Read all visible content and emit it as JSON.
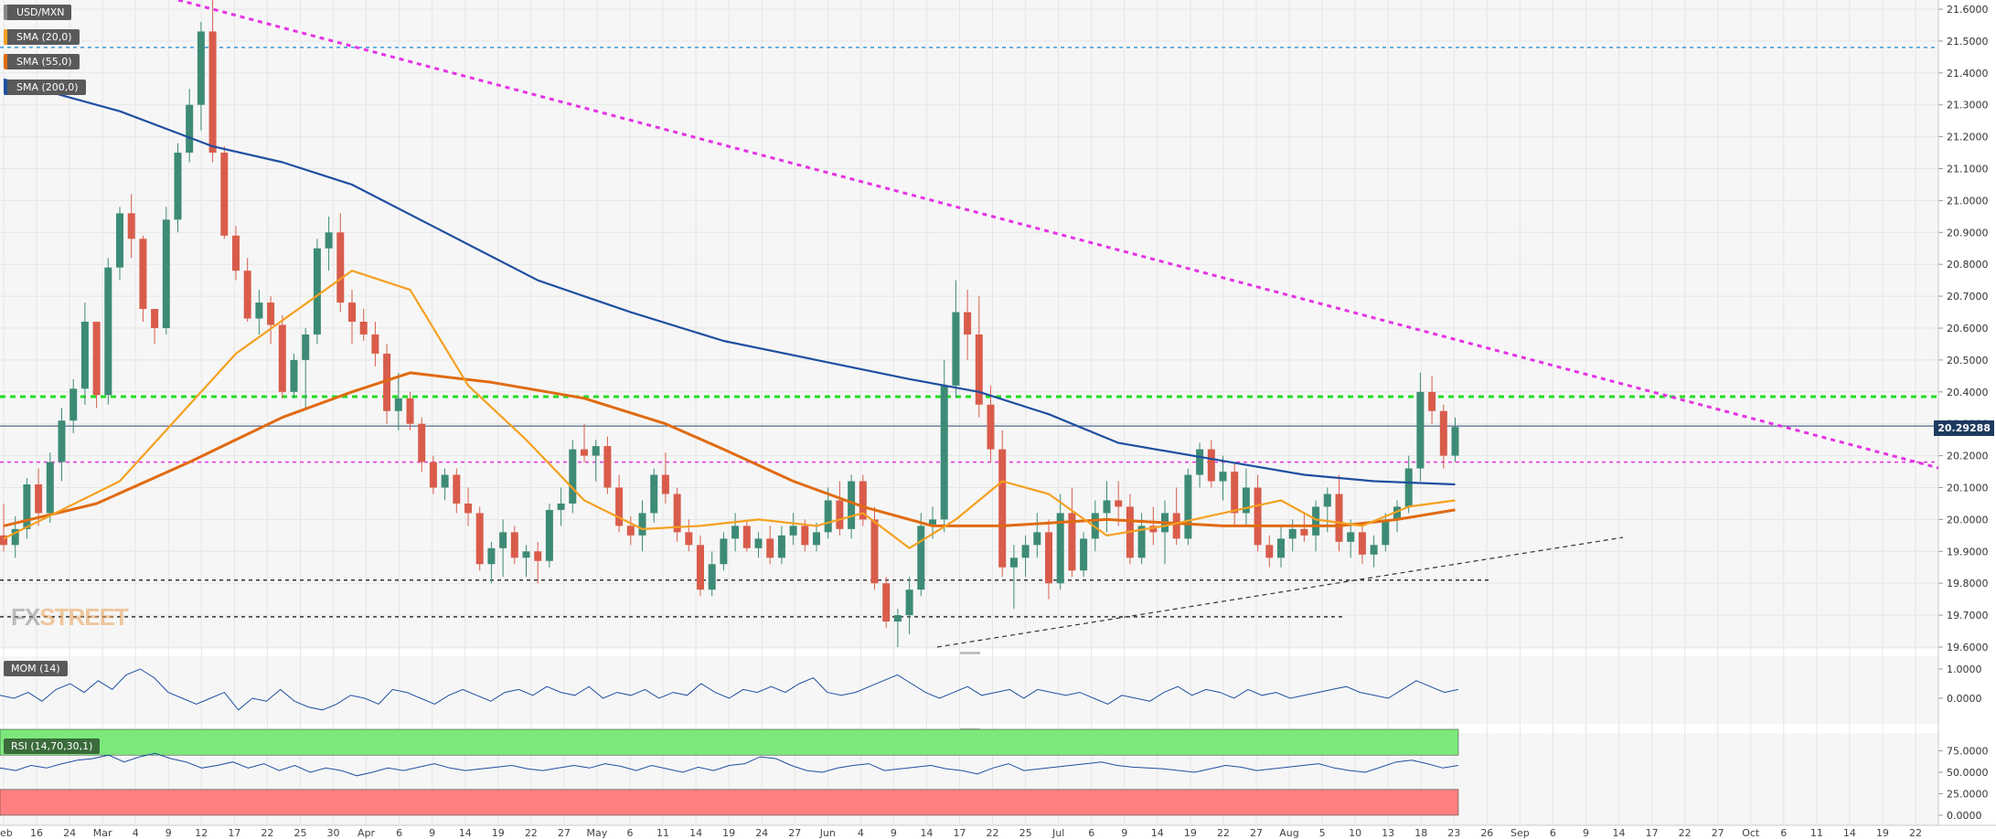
{
  "symbol": "USD/MXN",
  "indicators": {
    "sma20": "SMA (20,0)",
    "sma55": "SMA (55,0)",
    "sma200": "SMA (200,0)",
    "mom": "MOM (14)",
    "rsi": "RSI (14,70,30,1)"
  },
  "colors": {
    "up": "#3d8b76",
    "down": "#d95c4b",
    "sma20": "#f5a020",
    "sma55": "#e06b12",
    "sma200": "#1f4fa0",
    "trendline": "#e632e6",
    "level_green": "#22dd22",
    "rsi_overbought_zone": "#7ce87c",
    "rsi_oversold_zone": "#ff8080"
  },
  "logo": {
    "part1": "FX",
    "part2": "STREET"
  },
  "current_price_label": "20.29288",
  "chart_data": {
    "type": "candlestick",
    "y_axis": {
      "range": [
        19.6,
        21.6
      ],
      "ticks": [
        "21.6000",
        "21.5000",
        "21.4000",
        "21.3000",
        "21.2000",
        "21.1000",
        "21.0000",
        "20.9000",
        "20.8000",
        "20.7000",
        "20.6000",
        "20.5000",
        "20.4000",
        "20.3000",
        "20.2000",
        "20.1000",
        "20.0000",
        "19.9000",
        "19.8000",
        "19.7000",
        "19.6000"
      ]
    },
    "x_ticks": [
      "Feb",
      "16",
      "24",
      "Mar",
      "4",
      "9",
      "12",
      "17",
      "22",
      "25",
      "30",
      "Apr",
      "6",
      "9",
      "14",
      "19",
      "22",
      "27",
      "May",
      "6",
      "11",
      "14",
      "19",
      "24",
      "27",
      "Jun",
      "4",
      "9",
      "14",
      "17",
      "22",
      "25",
      "Jul",
      "6",
      "9",
      "14",
      "19",
      "22",
      "27",
      "Aug",
      "5",
      "10",
      "13",
      "18",
      "23",
      "26",
      "Sep",
      "6",
      "9",
      "14",
      "17",
      "22",
      "27",
      "Oct",
      "6",
      "11",
      "14",
      "19",
      "22"
    ],
    "candles": [
      [
        19.95,
        20.05,
        19.9,
        19.92
      ],
      [
        19.92,
        20.01,
        19.88,
        19.97
      ],
      [
        19.97,
        20.13,
        19.94,
        20.11
      ],
      [
        20.11,
        20.16,
        19.98,
        20.02
      ],
      [
        20.02,
        20.21,
        19.99,
        20.18
      ],
      [
        20.18,
        20.35,
        20.12,
        20.31
      ],
      [
        20.31,
        20.44,
        20.27,
        20.41
      ],
      [
        20.41,
        20.68,
        20.36,
        20.62
      ],
      [
        20.62,
        20.6,
        20.35,
        20.39
      ],
      [
        20.39,
        20.82,
        20.36,
        20.79
      ],
      [
        20.79,
        20.98,
        20.75,
        20.96
      ],
      [
        20.96,
        21.02,
        20.82,
        20.88
      ],
      [
        20.88,
        20.89,
        20.62,
        20.66
      ],
      [
        20.66,
        20.66,
        20.55,
        20.6
      ],
      [
        20.6,
        20.98,
        20.58,
        20.94
      ],
      [
        20.94,
        21.18,
        20.9,
        21.15
      ],
      [
        21.15,
        21.35,
        21.12,
        21.3
      ],
      [
        21.3,
        21.56,
        21.22,
        21.53
      ],
      [
        21.53,
        21.63,
        21.12,
        21.15
      ],
      [
        21.15,
        21.17,
        20.88,
        20.89
      ],
      [
        20.89,
        20.92,
        20.75,
        20.78
      ],
      [
        20.78,
        20.82,
        20.62,
        20.63
      ],
      [
        20.63,
        20.72,
        20.58,
        20.68
      ],
      [
        20.68,
        20.7,
        20.55,
        20.61
      ],
      [
        20.61,
        20.64,
        20.38,
        20.4
      ],
      [
        20.4,
        20.52,
        20.38,
        20.5
      ],
      [
        20.5,
        20.6,
        20.35,
        20.58
      ],
      [
        20.58,
        20.88,
        20.55,
        20.85
      ],
      [
        20.85,
        20.95,
        20.78,
        20.9
      ],
      [
        20.9,
        20.96,
        20.65,
        20.68
      ],
      [
        20.68,
        20.72,
        20.55,
        20.62
      ],
      [
        20.62,
        20.66,
        20.56,
        20.58
      ],
      [
        20.58,
        20.62,
        20.48,
        20.52
      ],
      [
        20.52,
        20.55,
        20.3,
        20.34
      ],
      [
        20.34,
        20.46,
        20.28,
        20.38
      ],
      [
        20.38,
        20.4,
        20.28,
        20.3
      ],
      [
        20.3,
        20.32,
        20.15,
        20.18
      ],
      [
        20.18,
        20.2,
        20.08,
        20.1
      ],
      [
        20.1,
        20.16,
        20.06,
        20.14
      ],
      [
        20.14,
        20.16,
        20.02,
        20.05
      ],
      [
        20.05,
        20.1,
        19.98,
        20.02
      ],
      [
        20.02,
        20.04,
        19.84,
        19.86
      ],
      [
        19.86,
        19.93,
        19.8,
        19.91
      ],
      [
        19.91,
        20.0,
        19.82,
        19.96
      ],
      [
        19.96,
        19.98,
        19.86,
        19.88
      ],
      [
        19.88,
        19.92,
        19.82,
        19.9
      ],
      [
        19.9,
        19.93,
        19.8,
        19.87
      ],
      [
        19.87,
        20.05,
        19.85,
        20.03
      ],
      [
        20.03,
        20.1,
        19.98,
        20.05
      ],
      [
        20.05,
        20.25,
        20.02,
        20.22
      ],
      [
        20.22,
        20.3,
        20.18,
        20.2
      ],
      [
        20.2,
        20.25,
        20.12,
        20.23
      ],
      [
        20.23,
        20.26,
        20.08,
        20.1
      ],
      [
        20.1,
        20.14,
        19.96,
        19.98
      ],
      [
        19.98,
        20.01,
        19.92,
        19.95
      ],
      [
        19.95,
        20.06,
        19.9,
        20.02
      ],
      [
        20.02,
        20.16,
        19.99,
        20.14
      ],
      [
        20.14,
        20.21,
        20.05,
        20.08
      ],
      [
        20.08,
        20.1,
        19.93,
        19.96
      ],
      [
        19.96,
        20.0,
        19.9,
        19.92
      ],
      [
        19.92,
        19.95,
        19.76,
        19.78
      ],
      [
        19.78,
        19.9,
        19.76,
        19.86
      ],
      [
        19.86,
        19.96,
        19.84,
        19.94
      ],
      [
        19.94,
        20.02,
        19.9,
        19.98
      ],
      [
        19.98,
        20.0,
        19.9,
        19.91
      ],
      [
        19.91,
        19.96,
        19.88,
        19.94
      ],
      [
        19.94,
        19.98,
        19.86,
        19.88
      ],
      [
        19.88,
        19.98,
        19.86,
        19.95
      ],
      [
        19.95,
        20.02,
        19.92,
        19.98
      ],
      [
        19.98,
        20.0,
        19.9,
        19.92
      ],
      [
        19.92,
        19.99,
        19.9,
        19.96
      ],
      [
        19.96,
        20.1,
        19.94,
        20.06
      ],
      [
        20.06,
        20.12,
        19.95,
        19.97
      ],
      [
        19.97,
        20.14,
        19.94,
        20.12
      ],
      [
        20.12,
        20.14,
        19.98,
        20.0
      ],
      [
        20.0,
        20.04,
        19.78,
        19.8
      ],
      [
        19.8,
        19.82,
        19.66,
        19.68
      ],
      [
        19.68,
        19.72,
        19.6,
        19.7
      ],
      [
        19.7,
        19.82,
        19.64,
        19.78
      ],
      [
        19.78,
        20.02,
        19.76,
        19.98
      ],
      [
        19.98,
        20.04,
        19.94,
        20.0
      ],
      [
        20.0,
        20.5,
        19.96,
        20.42
      ],
      [
        20.42,
        20.75,
        20.38,
        20.65
      ],
      [
        20.65,
        20.72,
        20.5,
        20.58
      ],
      [
        20.58,
        20.7,
        20.32,
        20.36
      ],
      [
        20.36,
        20.42,
        20.18,
        20.22
      ],
      [
        20.22,
        20.28,
        19.82,
        19.85
      ],
      [
        19.85,
        19.92,
        19.72,
        19.88
      ],
      [
        19.88,
        19.95,
        19.82,
        19.92
      ],
      [
        19.92,
        20.02,
        19.88,
        19.96
      ],
      [
        19.96,
        20.0,
        19.75,
        19.8
      ],
      [
        19.8,
        20.08,
        19.78,
        20.02
      ],
      [
        20.02,
        20.1,
        19.82,
        19.84
      ],
      [
        19.84,
        19.96,
        19.82,
        19.94
      ],
      [
        19.94,
        20.06,
        19.9,
        20.02
      ],
      [
        20.02,
        20.12,
        19.96,
        20.06
      ],
      [
        20.06,
        20.12,
        19.98,
        20.04
      ],
      [
        20.04,
        20.08,
        19.86,
        19.88
      ],
      [
        19.88,
        20.02,
        19.86,
        19.98
      ],
      [
        19.98,
        20.04,
        19.92,
        19.96
      ],
      [
        19.96,
        20.06,
        19.86,
        20.02
      ],
      [
        20.02,
        20.1,
        19.92,
        19.94
      ],
      [
        19.94,
        20.16,
        19.92,
        20.14
      ],
      [
        20.14,
        20.24,
        20.1,
        20.22
      ],
      [
        20.22,
        20.25,
        20.1,
        20.12
      ],
      [
        20.12,
        20.2,
        20.06,
        20.15
      ],
      [
        20.15,
        20.18,
        19.98,
        20.02
      ],
      [
        20.02,
        20.16,
        19.98,
        20.1
      ],
      [
        20.1,
        20.14,
        19.9,
        19.92
      ],
      [
        19.92,
        19.95,
        19.85,
        19.88
      ],
      [
        19.88,
        19.98,
        19.85,
        19.94
      ],
      [
        19.94,
        20.0,
        19.9,
        19.97
      ],
      [
        19.97,
        20.02,
        19.93,
        19.95
      ],
      [
        19.95,
        20.06,
        19.9,
        20.04
      ],
      [
        20.04,
        20.1,
        19.96,
        20.08
      ],
      [
        20.08,
        20.14,
        19.9,
        19.93
      ],
      [
        19.93,
        20.0,
        19.88,
        19.96
      ],
      [
        19.96,
        19.99,
        19.86,
        19.89
      ],
      [
        19.89,
        19.95,
        19.85,
        19.92
      ],
      [
        19.92,
        20.02,
        19.9,
        20.0
      ],
      [
        20.0,
        20.06,
        19.96,
        20.04
      ],
      [
        20.04,
        20.2,
        20.02,
        20.16
      ],
      [
        20.16,
        20.46,
        20.12,
        20.4
      ],
      [
        20.4,
        20.45,
        20.3,
        20.34
      ],
      [
        20.34,
        20.36,
        20.16,
        20.2
      ],
      [
        20.2,
        20.32,
        20.18,
        20.29
      ]
    ],
    "sma20": [
      [
        0,
        19.94
      ],
      [
        10,
        20.12
      ],
      [
        20,
        20.52
      ],
      [
        30,
        20.78
      ],
      [
        35,
        20.72
      ],
      [
        40,
        20.42
      ],
      [
        45,
        20.25
      ],
      [
        50,
        20.06
      ],
      [
        55,
        19.97
      ],
      [
        60,
        19.98
      ],
      [
        65,
        20.0
      ],
      [
        70,
        19.98
      ],
      [
        74,
        20.02
      ],
      [
        78,
        19.91
      ],
      [
        82,
        20.0
      ],
      [
        86,
        20.12
      ],
      [
        90,
        20.08
      ],
      [
        95,
        19.95
      ],
      [
        100,
        19.98
      ],
      [
        105,
        20.02
      ],
      [
        110,
        20.06
      ],
      [
        113,
        20.0
      ],
      [
        117,
        19.98
      ],
      [
        121,
        20.04
      ],
      [
        125,
        20.06
      ]
    ],
    "sma55": [
      [
        0,
        19.98
      ],
      [
        8,
        20.05
      ],
      [
        16,
        20.18
      ],
      [
        24,
        20.32
      ],
      [
        30,
        20.4
      ],
      [
        35,
        20.46
      ],
      [
        42,
        20.43
      ],
      [
        50,
        20.38
      ],
      [
        57,
        20.3
      ],
      [
        62,
        20.22
      ],
      [
        68,
        20.12
      ],
      [
        74,
        20.04
      ],
      [
        80,
        19.98
      ],
      [
        86,
        19.98
      ],
      [
        95,
        20.0
      ],
      [
        105,
        19.98
      ],
      [
        115,
        19.98
      ],
      [
        120,
        20.0
      ],
      [
        125,
        20.03
      ]
    ],
    "sma200": [
      [
        0,
        21.38
      ],
      [
        10,
        21.28
      ],
      [
        18,
        21.17
      ],
      [
        24,
        21.12
      ],
      [
        30,
        21.05
      ],
      [
        38,
        20.9
      ],
      [
        46,
        20.75
      ],
      [
        54,
        20.65
      ],
      [
        62,
        20.56
      ],
      [
        70,
        20.5
      ],
      [
        78,
        20.44
      ],
      [
        84,
        20.4
      ],
      [
        90,
        20.33
      ],
      [
        96,
        20.24
      ],
      [
        104,
        20.19
      ],
      [
        112,
        20.14
      ],
      [
        118,
        20.12
      ],
      [
        125,
        20.11
      ]
    ],
    "levels": [
      {
        "price": 21.48,
        "style": "dashed",
        "color": "#3a99d8"
      },
      {
        "price": 20.385,
        "style": "dashed",
        "color": "#22dd22"
      },
      {
        "price": 20.18,
        "style": "dashed",
        "color": "#e632e6"
      },
      {
        "price": 19.81,
        "style": "dashed",
        "color": "#333333"
      },
      {
        "price": 19.695,
        "style": "dashed",
        "color": "#333333"
      }
    ],
    "mom": {
      "ticks": [
        "1.0000",
        "0.0000"
      ],
      "values": [
        0.1,
        0.0,
        0.2,
        -0.1,
        0.3,
        0.5,
        0.2,
        0.6,
        0.3,
        0.8,
        1.0,
        0.7,
        0.2,
        0.0,
        -0.2,
        0.0,
        0.2,
        -0.4,
        0.0,
        -0.1,
        0.3,
        -0.1,
        -0.3,
        -0.4,
        -0.2,
        0.1,
        0.0,
        -0.2,
        0.3,
        0.2,
        0.0,
        -0.2,
        0.1,
        0.3,
        0.1,
        -0.1,
        0.2,
        0.3,
        0.1,
        0.4,
        0.2,
        0.1,
        0.4,
        0.0,
        0.2,
        0.1,
        0.3,
        0.0,
        0.2,
        0.1,
        0.5,
        0.2,
        0.0,
        0.3,
        0.2,
        0.4,
        0.2,
        0.5,
        0.7,
        0.2,
        0.1,
        0.2,
        0.4,
        0.6,
        0.8,
        0.5,
        0.2,
        0.0,
        0.2,
        0.4,
        0.1,
        0.2,
        0.3,
        0.0,
        0.3,
        0.2,
        0.1,
        0.2,
        0.0,
        -0.2,
        0.1,
        0.0,
        -0.1,
        0.2,
        0.4,
        0.1,
        0.3,
        0.2,
        0.0,
        0.3,
        0.1,
        0.2,
        0.0,
        0.1,
        0.2,
        0.3,
        0.4,
        0.2,
        0.1,
        0.0,
        0.3,
        0.6,
        0.4,
        0.2,
        0.3
      ]
    },
    "rsi": {
      "ticks": [
        "75.0000",
        "50.0000",
        "25.0000",
        "0.0000"
      ],
      "overbought": 70,
      "oversold": 30,
      "values": [
        55,
        52,
        58,
        55,
        60,
        64,
        66,
        70,
        62,
        68,
        72,
        66,
        62,
        55,
        58,
        62,
        55,
        60,
        52,
        58,
        50,
        55,
        52,
        46,
        50,
        55,
        52,
        56,
        60,
        55,
        52,
        54,
        56,
        58,
        54,
        52,
        55,
        58,
        55,
        60,
        57,
        52,
        58,
        54,
        50,
        56,
        52,
        58,
        60,
        68,
        66,
        58,
        52,
        50,
        55,
        58,
        60,
        52,
        54,
        56,
        58,
        54,
        52,
        48,
        55,
        60,
        52,
        54,
        56,
        58,
        60,
        62,
        58,
        56,
        55,
        54,
        52,
        50,
        54,
        58,
        56,
        52,
        54,
        56,
        58,
        60,
        55,
        52,
        50,
        56,
        62,
        64,
        60,
        55,
        58
      ]
    }
  }
}
